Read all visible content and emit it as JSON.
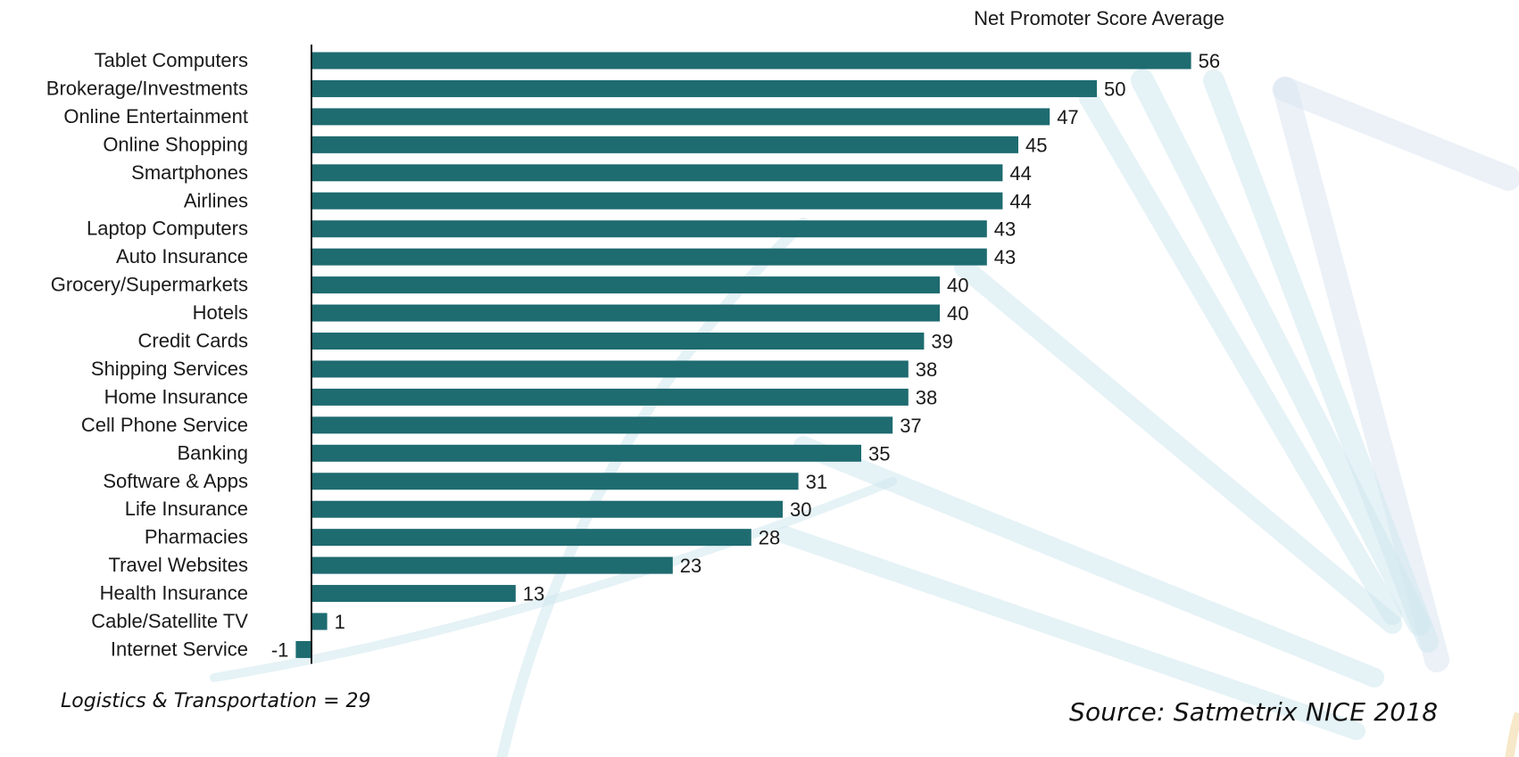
{
  "chart_data": {
    "type": "bar",
    "orientation": "horizontal",
    "title": "Net Promoter Score Average",
    "categories": [
      "Tablet Computers",
      "Brokerage/Investments",
      "Online Entertainment",
      "Online Shopping",
      "Smartphones",
      "Airlines",
      "Laptop Computers",
      "Auto Insurance",
      "Grocery/Supermarkets",
      "Hotels",
      "Credit Cards",
      "Shipping Services",
      "Home Insurance",
      "Cell Phone Service",
      "Banking",
      "Software & Apps",
      "Life Insurance",
      "Pharmacies",
      "Travel Websites",
      "Health Insurance",
      "Cable/Satellite TV",
      "Internet Service"
    ],
    "values": [
      56,
      50,
      47,
      45,
      44,
      44,
      43,
      43,
      40,
      40,
      39,
      38,
      38,
      37,
      35,
      31,
      30,
      28,
      23,
      13,
      1,
      -1
    ],
    "data_labels": true,
    "bar_color": "#1e6b70",
    "grid": false,
    "legend": "none"
  },
  "footnotes": {
    "left": "Logistics & Transportation = 29",
    "right": "Source: Satmetrix NICE 2018"
  },
  "background": {
    "decoration": "light-blue-arc-watermark",
    "colors": [
      "#cfe8ef",
      "#dbe6f1",
      "#f6e8c8"
    ]
  }
}
